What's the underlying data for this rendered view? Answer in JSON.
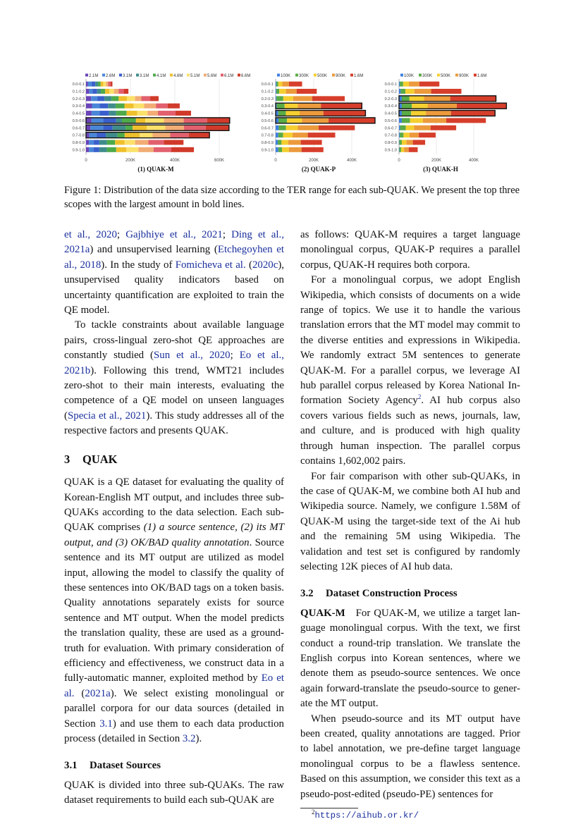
{
  "figure": {
    "caption": "Figure 1: Distribution of the data size according to the TER range for each sub-QUAK. We present the top three scopes with the largest amount in bold lines."
  },
  "chart_data": [
    {
      "type": "bar",
      "orientation": "horizontal",
      "stacked": true,
      "title": "(1) QUAK-M",
      "categories": [
        "0.0-0.1",
        "0.1-0.2",
        "0.2-0.3",
        "0.3-0.4",
        "0.4-0.5",
        "0.5-0.6",
        "0.6-0.7",
        "0.7-0.8",
        "0.8-0.9",
        "0.9-1.0"
      ],
      "xticks": [
        "0",
        "200K",
        "400K",
        "600K"
      ],
      "xlim": [
        0,
        680000
      ],
      "legend_position": "top",
      "grid": true,
      "highlighted": [
        "0.5-0.6",
        "0.6-0.7",
        "0.7-0.8"
      ],
      "series": [
        {
          "name": "2.1M",
          "color": "#6a44b8",
          "values": [
            8000,
            14000,
            23000,
            27000,
            25000,
            25000,
            20000,
            15000,
            13000,
            13000
          ]
        },
        {
          "name": "2.6M",
          "color": "#4a86d8",
          "values": [
            17000,
            16000,
            28000,
            35000,
            37000,
            53000,
            58000,
            32000,
            22000,
            22000
          ]
        },
        {
          "name": "3.1M",
          "color": "#3a5fcc",
          "values": [
            17000,
            20000,
            32000,
            37000,
            42000,
            58000,
            42000,
            42000,
            25000,
            25000
          ]
        },
        {
          "name": "3.1M",
          "color": "#3f8c8a",
          "values": [
            12000,
            17000,
            32000,
            34000,
            32000,
            26000,
            58000,
            53000,
            34000,
            34000
          ]
        },
        {
          "name": "4.1M",
          "color": "#4eaa4a",
          "values": [
            12000,
            19000,
            32000,
            40000,
            47000,
            63000,
            32000,
            32000,
            37000,
            42000
          ]
        },
        {
          "name": "4.6M",
          "color": "#f0c02c",
          "values": [
            12000,
            19000,
            37000,
            42000,
            47000,
            42000,
            63000,
            68000,
            42000,
            45000
          ]
        },
        {
          "name": "5.1M",
          "color": "#fbe06a",
          "values": [
            12000,
            21000,
            37000,
            47000,
            47000,
            84000,
            84000,
            58000,
            48000,
            55000
          ]
        },
        {
          "name": "5.6M",
          "color": "#f2ac74",
          "values": [
            10000,
            21000,
            28000,
            53000,
            47000,
            89000,
            84000,
            79000,
            60000,
            68000
          ]
        },
        {
          "name": "6.1M",
          "color": "#e2606e",
          "values": [
            10000,
            23000,
            40000,
            53000,
            79000,
            105000,
            98000,
            84000,
            70000,
            80000
          ]
        },
        {
          "name": "6.6M",
          "color": "#d13a2a",
          "values": [
            9000,
            21000,
            38000,
            54000,
            70000,
            102000,
            105000,
            93000,
            88000,
            102000
          ]
        }
      ]
    },
    {
      "type": "bar",
      "orientation": "horizontal",
      "stacked": true,
      "title": "(2) QUAK-P",
      "categories": [
        "0.0-0.1",
        "0.1-0.2",
        "0.2-0.3",
        "0.3-0.4",
        "0.4-0.5",
        "0.5-0.6",
        "0.6-0.7",
        "0.7-0.8",
        "0.8-0.9",
        "0.9-1.0"
      ],
      "xticks": [
        "0",
        "200K",
        "400K"
      ],
      "xlim": [
        0,
        560000
      ],
      "legend_position": "top",
      "grid": true,
      "highlighted": [
        "0.3-0.4",
        "0.4-0.5",
        "0.5-0.6"
      ],
      "series": [
        {
          "name": "100K",
          "color": "#3f7fe0",
          "values": [
            4000,
            4000,
            4000,
            6000,
            14000,
            15000,
            16000,
            14000,
            11000,
            14000
          ]
        },
        {
          "name": "300K",
          "color": "#5aab46",
          "values": [
            10000,
            15000,
            36000,
            41000,
            40000,
            45000,
            38000,
            25000,
            20000,
            20000
          ]
        },
        {
          "name": "500K",
          "color": "#f5cf30",
          "values": [
            21000,
            35000,
            52000,
            69000,
            72000,
            78000,
            62000,
            50000,
            35000,
            36000
          ]
        },
        {
          "name": "900K",
          "color": "#ec9a3c",
          "values": [
            35000,
            56000,
            100000,
            122000,
            125000,
            140000,
            110000,
            80000,
            66000,
            66000
          ]
        },
        {
          "name": "1.6M",
          "color": "#d63e2b",
          "values": [
            69000,
            106000,
            171000,
            215000,
            221000,
            244000,
            190000,
            144000,
            111000,
            115000
          ]
        }
      ]
    },
    {
      "type": "bar",
      "orientation": "horizontal",
      "stacked": true,
      "title": "(3) QUAK-H",
      "categories": [
        "0.0-0.1",
        "0.1-0.2",
        "0.2-0.3",
        "0.3-0.4",
        "0.4-0.5",
        "0.5-0.6",
        "0.6-0.7",
        "0.7-0.8",
        "0.8-0.9",
        "0.9-1.0"
      ],
      "xticks": [
        "0",
        "200K",
        "400K"
      ],
      "xlim": [
        0,
        580000
      ],
      "legend_position": "top",
      "grid": true,
      "highlighted": [
        "0.2-0.3",
        "0.3-0.4",
        "0.4-0.5"
      ],
      "series": [
        {
          "name": "100K",
          "color": "#3f7fe0",
          "values": [
            4000,
            9000,
            15000,
            15000,
            15000,
            15000,
            6000,
            4000,
            2000,
            2000
          ]
        },
        {
          "name": "300K",
          "color": "#5aab46",
          "values": [
            18000,
            25000,
            41000,
            54000,
            50000,
            44000,
            30000,
            20000,
            13000,
            9000
          ]
        },
        {
          "name": "500K",
          "color": "#f5cf30",
          "values": [
            31000,
            48000,
            78000,
            84000,
            79000,
            69000,
            45000,
            32000,
            25000,
            16000
          ]
        },
        {
          "name": "900K",
          "color": "#ec9a3c",
          "values": [
            56000,
            90000,
            140000,
            156000,
            134000,
            125000,
            88000,
            50000,
            34000,
            25000
          ]
        },
        {
          "name": "1.6M",
          "color": "#d63e2b",
          "values": [
            107000,
            162000,
            245000,
            266000,
            236000,
            212000,
            137000,
            90000,
            66000,
            48000
          ]
        }
      ]
    }
  ],
  "left": {
    "p1": [
      "et al., 2020",
      "; ",
      "Gajbhiye et al., 2021",
      "; ",
      "Ding et al., 2021a",
      ") and unsupervised learning (",
      "Etchegoyhen et al., 2018",
      ").  In the study of ",
      "Fomicheva et al.",
      " (",
      "2020c",
      "), unsupervised quality indicators based on uncertainty quantification are exploited to train the QE model."
    ],
    "p2": [
      "To tackle constraints about available language pairs, cross-lingual zero-shot QE approaches are constantly studied (",
      "Sun et al., 2020",
      "; ",
      "Eo et al., 2021b",
      ").  Following this trend, WMT21 includes zero-shot to their main interests, evaluating the competence of a QE model on unseen languages (",
      "Specia et al., 2021",
      ").  This study addresses all of the respective factors and presents QUAK."
    ],
    "sec3_num": "3",
    "sec3_title": "QUAK",
    "p3": [
      "QUAK is a QE dataset for evaluating the quality of Korean-English MT output, and includes three sub-QUAKs according to the data selection. Each sub-QUAK comprises ",
      "(1) a source sentence, (2) its MT output, and (3) OK/BAD quality annotation",
      ". Source sentence and its MT output are utilized as model input, allowing the model to classify the quality of these sentences into OK/BAD tags on a token basis.  Quality annotations separately ex­ists for source sentence and MT output. When the model predicts the translation quality, these are used as a ground-truth for evaluation.  With pri­mary consideration of efficiency and effectiveness, we construct data in a fully-automatic manner, ex­ploited method by ",
      "Eo et al.",
      " (",
      "2021a",
      ").  We select existing monolingual or parallel corpora for our data sources (detailed in Section ",
      "3.1",
      ") and use them to each data production process (detailed in Section ",
      "3.2",
      ")."
    ],
    "sec31_num": "3.1",
    "sec31_title": "Dataset Sources",
    "p4": "QUAK is divided into three sub-QUAKs. The raw dataset requirements to build each sub-QUAK are"
  },
  "right": {
    "p1": "as follows: QUAK-M requires a target language monolingual corpus, QUAK-P requires a parallel corpus, QUAK-H requires both corpora.",
    "p2": [
      "For a monolingual corpus, we adopt English Wikipedia, which consists of documents on a wide range of topics.  We use it to handle the various translation errors that the MT model may commit to the diverse entities and expressions in Wikipedia. We randomly extract 5M sentences to generate QUAK-M. For a parallel corpus, we leverage AI hub parallel corpus released by Korea National In­formation Society Agency",
      "2",
      ".  AI hub corpus also covers various fields such as news, journals, law, and culture, and is produced with high quality through human inspection.  The parallel corpus contains 1,602,002 pairs."
    ],
    "p3": "For fair comparison with other sub-QUAKs, in the case of QUAK-M, we combine both AI hub and Wikipedia source.  Namely, we configure 1.58M of QUAK-M using the target-side text of the Ai hub and the remaining 5M using Wikipedia. The validation and test set is configured by randomly selecting 12K pieces of AI hub data.",
    "sec32_num": "3.2",
    "sec32_title": "Dataset Construction Process",
    "p4_head": "QUAK-M",
    "p4": "For QUAK-M, we utilize a target lan­guage monolingual corpus. With the text, we first conduct a round-trip translation. We translate the English corpus into Korean sentences, where we denote them as pseudo-source sentences. We once again forward-translate the pseudo-source to gener­ate the MT output.",
    "p5": "When pseudo-source and its MT output have been created, quality annotations are tagged. Prior to label annotation, we pre-define target language monolingual corpus to be a flawless sentence. Based on this assumption, we consider this text as a pseudo-post-edited (pseudo-PE) sentences for",
    "footnote_mark": "2",
    "footnote_url": "https://aihub.or.kr/"
  }
}
